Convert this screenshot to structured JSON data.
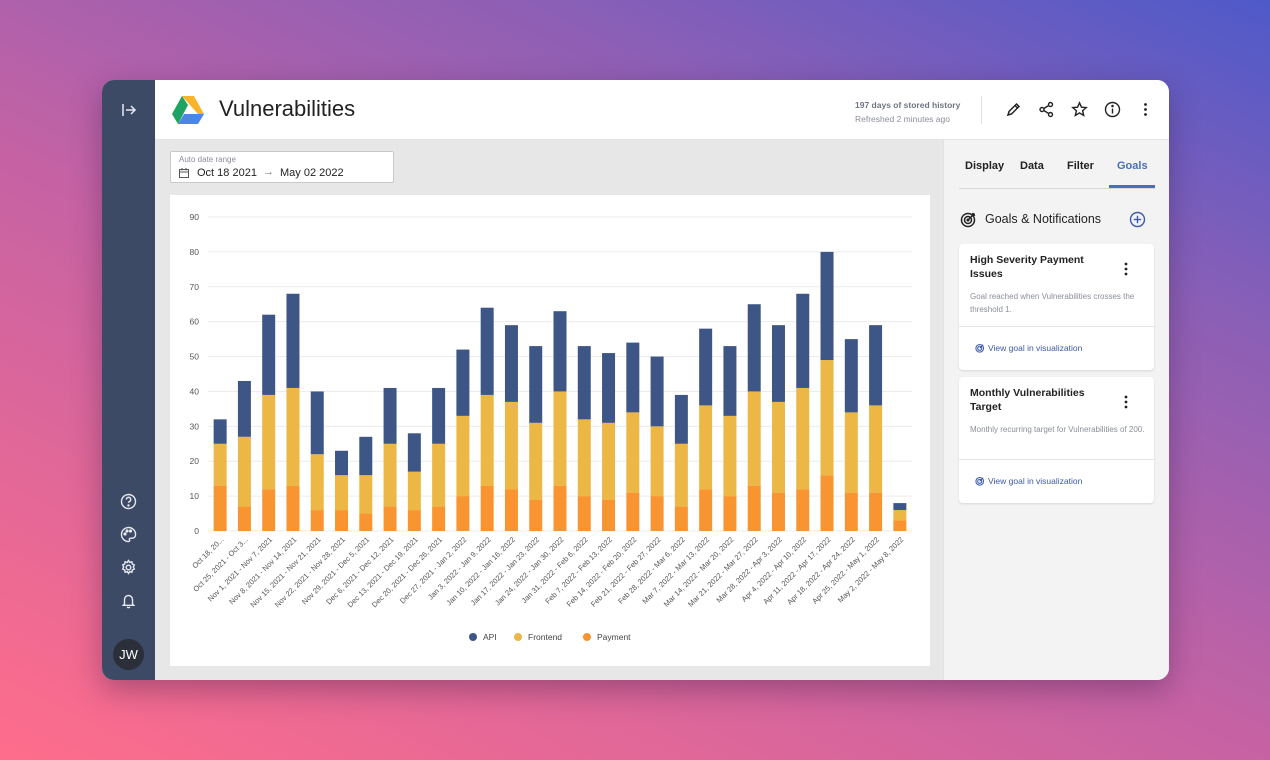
{
  "app": {
    "title": "Vulnerabilities",
    "user_initials": "JW"
  },
  "header": {
    "history": "197 days of stored history",
    "refreshed": "Refreshed 2 minutes ago",
    "actions": [
      "edit-icon",
      "share-icon",
      "star-icon",
      "info-icon",
      "more-vertical-icon"
    ]
  },
  "rail": {
    "icons": [
      "collapse-icon",
      "help-icon",
      "palette-icon",
      "settings-icon",
      "bell-icon"
    ]
  },
  "date_range": {
    "label": "Auto date range",
    "from": "Oct 18 2021",
    "arrow": "→",
    "to": "May 02 2022"
  },
  "tabs": [
    {
      "label": "Display"
    },
    {
      "label": "Data"
    },
    {
      "label": "Filter"
    },
    {
      "label": "Goals",
      "active": true
    }
  ],
  "goals_panel": {
    "title": "Goals & Notifications",
    "goals": [
      {
        "title": "High Severity Payment Issues",
        "description": "Goal reached when Vulnerabilities crosses the threshold 1.",
        "link": "View goal in visualization"
      },
      {
        "title": "Monthly Vulnerabilities Target",
        "description": "Monthly recurring target for Vulnerabilities of 200.",
        "link": "View goal in visualization"
      }
    ]
  },
  "colors": {
    "api": "#3e5686",
    "frontend": "#ecb745",
    "payment": "#f99531",
    "accent": "#4a6fb3",
    "rail": "#3d4a66"
  },
  "chart_data": {
    "type": "bar",
    "stacked": true,
    "ylim": [
      0,
      90
    ],
    "yticks": [
      0,
      10,
      20,
      30,
      40,
      50,
      60,
      70,
      80,
      90
    ],
    "grid": true,
    "legend_position": "bottom",
    "categories": [
      "Oct 18, 20...",
      "Oct 25, 2021 - Oct 3...",
      "Nov 1, 2021 - Nov 7, 2021",
      "Nov 8, 2021 - Nov 14, 2021",
      "Nov 15, 2021 - Nov 21, 2021",
      "Nov 22, 2021 - Nov 28, 2021",
      "Nov 29, 2021 - Dec 5, 2021",
      "Dec 6, 2021 - Dec 12, 2021",
      "Dec 13, 2021 - Dec 19, 2021",
      "Dec 20, 2021 - Dec 26, 2021",
      "Dec 27, 2021 - Jan 2, 2022",
      "Jan 3, 2022 - Jan 9, 2022",
      "Jan 10, 2022 - Jan 16, 2022",
      "Jan 17, 2022 - Jan 23, 2022",
      "Jan 24, 2022 - Jan 30, 2022",
      "Jan 31, 2022 - Feb 6, 2022",
      "Feb 7, 2022 - Feb 13, 2022",
      "Feb 14, 2022 - Feb 20, 2022",
      "Feb 21, 2022 - Feb 27, 2022",
      "Feb 28, 2022 - Mar 6, 2022",
      "Mar 7, 2022 - Mar 13, 2022",
      "Mar 14, 2022 - Mar 20, 2022",
      "Mar 21, 2022 - Mar 27, 2022",
      "Mar 28, 2022 - Apr 3, 2022",
      "Apr 4, 2022 - Apr 10, 2022",
      "Apr 11, 2022 - Apr 17, 2022",
      "Apr 18, 2022 - Apr 24, 2022",
      "Apr 25, 2022 - May 1, 2022",
      "May 2, 2022 - May 8, 2022"
    ],
    "series": [
      {
        "name": "Payment",
        "values": [
          13,
          7,
          12,
          13,
          6,
          6,
          5,
          7,
          6,
          7,
          10,
          13,
          12,
          9,
          13,
          10,
          9,
          11,
          10,
          7,
          12,
          10,
          13,
          11,
          12,
          16,
          11,
          11,
          3
        ]
      },
      {
        "name": "Frontend",
        "values": [
          12,
          20,
          27,
          28,
          16,
          10,
          11,
          18,
          11,
          18,
          23,
          26,
          25,
          22,
          27,
          22,
          22,
          23,
          20,
          18,
          24,
          23,
          27,
          26,
          29,
          33,
          23,
          25,
          3
        ]
      },
      {
        "name": "API",
        "values": [
          7,
          16,
          23,
          27,
          18,
          7,
          11,
          16,
          11,
          16,
          19,
          25,
          22,
          22,
          23,
          21,
          20,
          20,
          20,
          14,
          22,
          20,
          25,
          22,
          27,
          31,
          21,
          23,
          2
        ]
      }
    ],
    "legend": [
      "API",
      "Frontend",
      "Payment"
    ]
  }
}
